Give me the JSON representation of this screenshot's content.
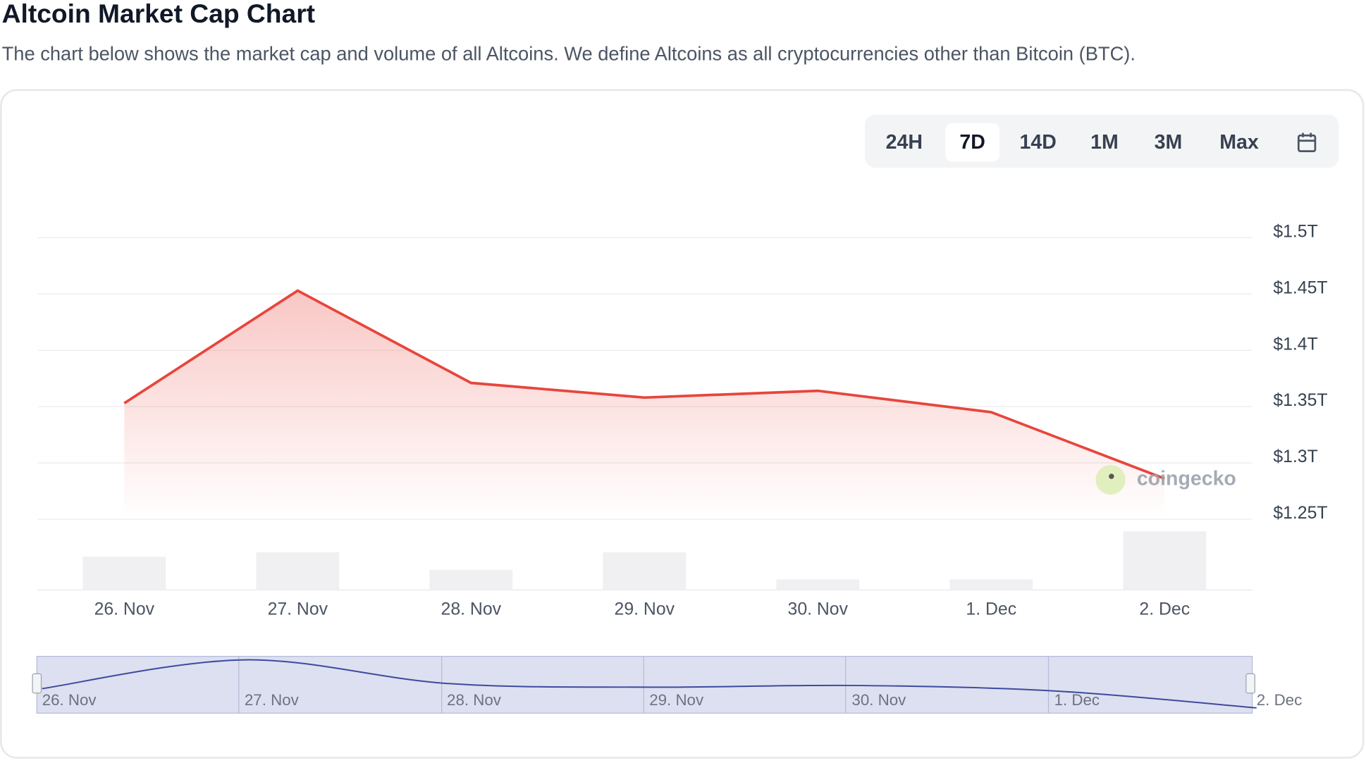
{
  "header": {
    "title": "Altcoin Market Cap Chart",
    "subtitle": "The chart below shows the market cap and volume of all Altcoins. We define Altcoins as all cryptocurrencies other than Bitcoin (BTC)."
  },
  "range_buttons": [
    "24H",
    "7D",
    "14D",
    "1M",
    "3M",
    "Max"
  ],
  "selected_range": 1,
  "chart_data": {
    "type": "line",
    "categories": [
      "26. Nov",
      "27. Nov",
      "28. Nov",
      "29. Nov",
      "30. Nov",
      "1. Dec",
      "2. Dec"
    ],
    "values": [
      1.353,
      1.453,
      1.371,
      1.358,
      1.364,
      1.345,
      1.286
    ],
    "color": "#e8453c",
    "volumes": [
      38,
      43,
      23,
      43,
      12,
      12,
      67
    ],
    "volume_color": "#f0f0f2",
    "ylim": [
      1.25,
      1.5
    ],
    "yticks": [
      {
        "value": 1.25,
        "label": "$1.25T"
      },
      {
        "value": 1.3,
        "label": "$1.3T"
      },
      {
        "value": 1.35,
        "label": "$1.35T"
      },
      {
        "value": 1.4,
        "label": "$1.4T"
      },
      {
        "value": 1.45,
        "label": "$1.45T"
      },
      {
        "value": 1.5,
        "label": "$1.5T"
      }
    ],
    "grid": true,
    "watermark": "coingecko"
  }
}
